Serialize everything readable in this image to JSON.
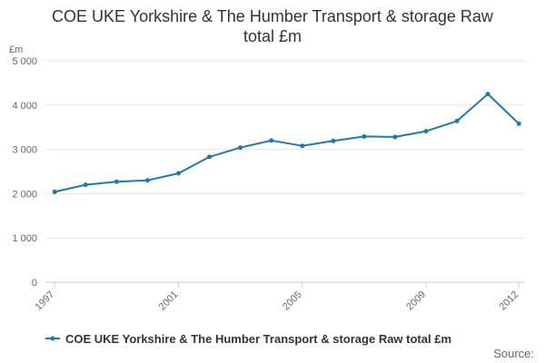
{
  "title_line1": "COE UKE Yorkshire & The Humber Transport & storage Raw",
  "title_line2": "total £m",
  "source_label": "Source:",
  "colors": {
    "series": "#1a7ab8",
    "grid": "#e6e6e6",
    "axis": "#c0d0e0"
  },
  "chart_data": {
    "type": "line",
    "title": "COE UKE Yorkshire & The Humber Transport & storage Raw total £m",
    "ylabel": "£m",
    "xlabel": "",
    "ylim": [
      0,
      5000
    ],
    "yticks": [
      0,
      1000,
      2000,
      3000,
      4000,
      5000
    ],
    "ytick_labels": [
      "0",
      "1 000",
      "2 000",
      "3 000",
      "4 000",
      "5 000"
    ],
    "xticks": [
      1997,
      2001,
      2005,
      2009,
      2012
    ],
    "xtick_labels": [
      "1997",
      "2001",
      "2005",
      "2009",
      "2012"
    ],
    "grid": true,
    "legend_position": "bottom",
    "series": [
      {
        "name": "COE UKE Yorkshire & The Humber Transport & storage Raw total £m",
        "x": [
          1997,
          1998,
          1999,
          2000,
          2001,
          2002,
          2003,
          2004,
          2005,
          2006,
          2007,
          2008,
          2009,
          2010,
          2011,
          2012
        ],
        "values": [
          2040,
          2200,
          2270,
          2300,
          2460,
          2830,
          3040,
          3200,
          3080,
          3190,
          3290,
          3280,
          3410,
          3640,
          4250,
          3580
        ]
      }
    ]
  }
}
